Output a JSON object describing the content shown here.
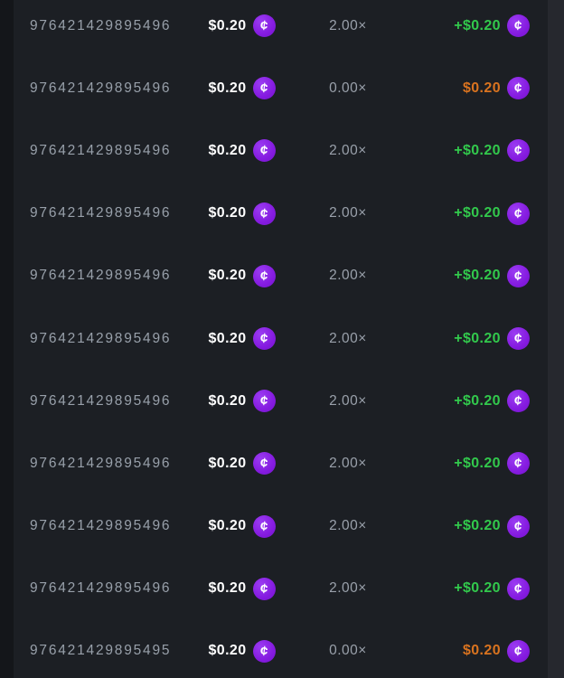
{
  "colors": {
    "page_background": "#14161a",
    "table_background": "#1c1f24",
    "scrollbar_track": "#26282e",
    "id_text": "#98a0aa",
    "bet_text": "#ffffff",
    "multiplier_text": "#9aa1ab",
    "win_text": "#32c94c",
    "loss_text": "#d9731f",
    "coin_background": "#851be0",
    "coin_glyph": "#ffffff"
  },
  "icons": {
    "coin_glyph": "¢"
  },
  "table": {
    "columns": [
      "bet_id",
      "bet_amount",
      "multiplier",
      "payout"
    ],
    "rows": [
      {
        "id": "976421429895496",
        "bet": "$0.20",
        "multiplier": "2.00×",
        "payout": "+$0.20",
        "result": "win"
      },
      {
        "id": "976421429895496",
        "bet": "$0.20",
        "multiplier": "0.00×",
        "payout": "$0.20",
        "result": "loss"
      },
      {
        "id": "976421429895496",
        "bet": "$0.20",
        "multiplier": "2.00×",
        "payout": "+$0.20",
        "result": "win"
      },
      {
        "id": "976421429895496",
        "bet": "$0.20",
        "multiplier": "2.00×",
        "payout": "+$0.20",
        "result": "win"
      },
      {
        "id": "976421429895496",
        "bet": "$0.20",
        "multiplier": "2.00×",
        "payout": "+$0.20",
        "result": "win"
      },
      {
        "id": "976421429895496",
        "bet": "$0.20",
        "multiplier": "2.00×",
        "payout": "+$0.20",
        "result": "win"
      },
      {
        "id": "976421429895496",
        "bet": "$0.20",
        "multiplier": "2.00×",
        "payout": "+$0.20",
        "result": "win"
      },
      {
        "id": "976421429895496",
        "bet": "$0.20",
        "multiplier": "2.00×",
        "payout": "+$0.20",
        "result": "win"
      },
      {
        "id": "976421429895496",
        "bet": "$0.20",
        "multiplier": "2.00×",
        "payout": "+$0.20",
        "result": "win"
      },
      {
        "id": "976421429895496",
        "bet": "$0.20",
        "multiplier": "2.00×",
        "payout": "+$0.20",
        "result": "win"
      },
      {
        "id": "976421429895495",
        "bet": "$0.20",
        "multiplier": "0.00×",
        "payout": "$0.20",
        "result": "loss"
      }
    ]
  }
}
